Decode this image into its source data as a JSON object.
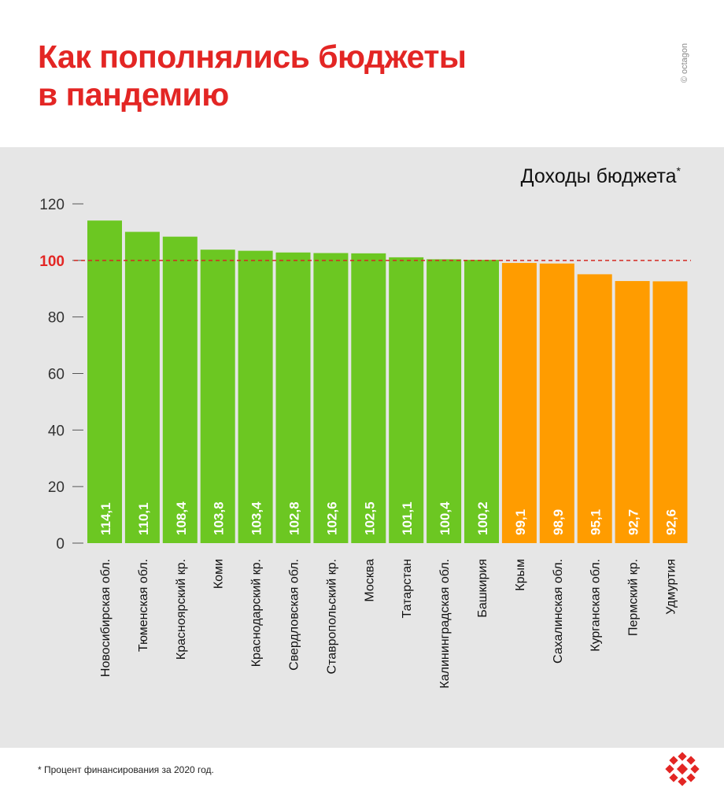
{
  "title_lines": [
    "Как пополнялись бюджеты",
    "в пандемию"
  ],
  "brand": "© octagon",
  "footnote": "* Процент финансирования за 2020 год.",
  "colors": {
    "accent": "#e32624",
    "above": "#6cc722",
    "below": "#ff9c00",
    "panel": "#e6e6e6"
  },
  "chart_data": {
    "type": "bar",
    "title": "Доходы бюджета",
    "title_marker": "*",
    "categories": [
      "Новосибирская обл.",
      "Тюменская обл.",
      "Красноярский кр.",
      "Коми",
      "Краснодарский кр.",
      "Свердловская обл.",
      "Ставропольский кр.",
      "Москва",
      "Татарстан",
      "Калининградская обл.",
      "Башкирия",
      "Крым",
      "Сахалинская обл.",
      "Курганская обл.",
      "Пермский кр.",
      "Удмуртия"
    ],
    "values": [
      114.1,
      110.1,
      108.4,
      103.8,
      103.4,
      102.8,
      102.6,
      102.5,
      101.1,
      100.4,
      100.2,
      99.1,
      98.9,
      95.1,
      92.7,
      92.6
    ],
    "value_labels": [
      "114,1",
      "110,1",
      "108,4",
      "103,8",
      "103,4",
      "102,8",
      "102,6",
      "102,5",
      "101,1",
      "100,4",
      "100,2",
      "99,1",
      "98,9",
      "95,1",
      "92,7",
      "92,6"
    ],
    "ylim": [
      0,
      120
    ],
    "yticks": [
      0,
      20,
      40,
      60,
      80,
      100,
      120
    ],
    "reference_line": 100,
    "grid": false,
    "legend": "none"
  }
}
